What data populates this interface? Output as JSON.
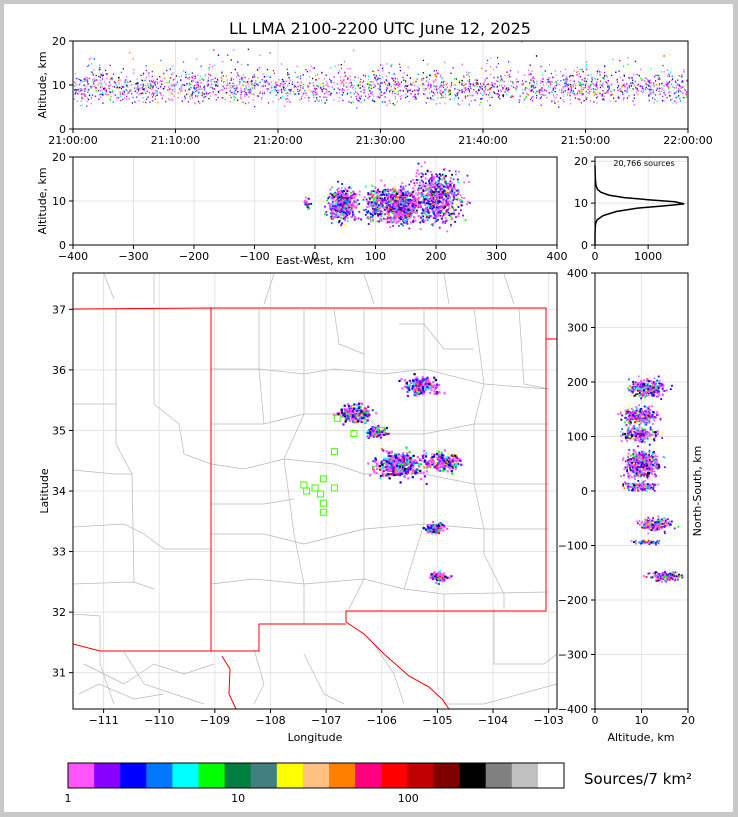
{
  "chart_data": [
    {
      "type": "scatter",
      "title": "LL LMA 2100-2200 UTC June 12, 2025",
      "ylabel": "Altitude, km",
      "ylim": [
        0,
        20
      ],
      "yticks": [
        "0",
        "10",
        "20"
      ],
      "xticks": [
        "21:00:00",
        "21:10:00",
        "21:20:00",
        "21:30:00",
        "21:40:00",
        "21:50:00",
        "22:00:00"
      ],
      "xlim_minutes": [
        0,
        60
      ]
    },
    {
      "type": "scatter",
      "xlabel": "East-West, km",
      "ylabel": "Altitude, km",
      "xlim": [
        -400,
        400
      ],
      "ylim": [
        0,
        20
      ],
      "xticks": [
        "−400",
        "−300",
        "−200",
        "−100",
        "0",
        "100",
        "200",
        "300",
        "400"
      ],
      "yticks": [
        "0",
        "10",
        "20"
      ]
    },
    {
      "type": "line",
      "annotation": "20,766 sources",
      "xlim": [
        0,
        1750
      ],
      "ylim": [
        0,
        21
      ],
      "xticks": [
        "0",
        "1000"
      ],
      "yticks": [
        "0",
        "10",
        "20"
      ],
      "profile": [
        [
          0,
          0
        ],
        [
          0,
          2
        ],
        [
          3,
          4
        ],
        [
          10,
          5
        ],
        [
          40,
          6
        ],
        [
          150,
          7
        ],
        [
          400,
          8
        ],
        [
          800,
          8.8
        ],
        [
          1350,
          9.4
        ],
        [
          1680,
          9.8
        ],
        [
          1500,
          10.3
        ],
        [
          1000,
          10.8
        ],
        [
          550,
          11.3
        ],
        [
          260,
          11.9
        ],
        [
          110,
          12.6
        ],
        [
          45,
          13.3
        ],
        [
          18,
          14.2
        ],
        [
          8,
          15.5
        ],
        [
          3,
          17
        ],
        [
          0,
          19
        ]
      ]
    },
    {
      "type": "scatter",
      "xlabel": "Longitude",
      "ylabel": "Latitude",
      "xlim": [
        -111.55,
        -102.85
      ],
      "ylim": [
        30.4,
        37.6
      ],
      "xticks": [
        "−111",
        "−110",
        "−109",
        "−108",
        "−107",
        "−106",
        "−105",
        "−104",
        "−103"
      ],
      "yticks": [
        "31",
        "32",
        "33",
        "34",
        "35",
        "36",
        "37"
      ],
      "storm_clusters": [
        {
          "lon": -105.3,
          "lat": 35.75,
          "size": "medium"
        },
        {
          "lon": -106.5,
          "lat": 35.3,
          "size": "medium"
        },
        {
          "lon": -105.7,
          "lat": 34.45,
          "size": "large"
        },
        {
          "lon": -104.9,
          "lat": 34.5,
          "size": "medium"
        },
        {
          "lon": -105.05,
          "lat": 33.4,
          "size": "small"
        },
        {
          "lon": -105.0,
          "lat": 32.6,
          "size": "small"
        },
        {
          "lon": -106.1,
          "lat": 35.0,
          "size": "small"
        }
      ],
      "stations": [
        {
          "lon": -107.35,
          "lat": 34.0
        },
        {
          "lon": -107.2,
          "lat": 34.05
        },
        {
          "lon": -107.05,
          "lat": 34.2
        },
        {
          "lon": -107.1,
          "lat": 33.95
        },
        {
          "lon": -107.05,
          "lat": 33.8
        },
        {
          "lon": -106.85,
          "lat": 34.05
        },
        {
          "lon": -107.05,
          "lat": 33.65
        },
        {
          "lon": -106.85,
          "lat": 34.65
        },
        {
          "lon": -106.5,
          "lat": 34.95
        },
        {
          "lon": -106.0,
          "lat": 35.0
        },
        {
          "lon": -107.4,
          "lat": 34.1
        },
        {
          "lon": -106.8,
          "lat": 35.2
        }
      ]
    },
    {
      "type": "scatter",
      "xlabel": "Altitude, km",
      "ylabel": "North-South, km",
      "xlim": [
        0,
        20
      ],
      "ylim": [
        -400,
        400
      ],
      "xticks": [
        "0",
        "10",
        "20"
      ],
      "yticks": [
        "−400",
        "−300",
        "−200",
        "−100",
        "0",
        "100",
        "200",
        "300",
        "400"
      ]
    }
  ],
  "colorbar": {
    "label": "Sources/7 km²",
    "ticks": [
      "1",
      "10",
      "100"
    ],
    "colors": [
      "#ff55ff",
      "#8800ff",
      "#0000ff",
      "#0077ff",
      "#00ffff",
      "#00ff00",
      "#008040",
      "#408080",
      "#ffff00",
      "#ffc080",
      "#ff8000",
      "#ff0080",
      "#ff0000",
      "#c00000",
      "#800000",
      "#000000",
      "#808080",
      "#c0c0c0",
      "#ffffff"
    ]
  }
}
